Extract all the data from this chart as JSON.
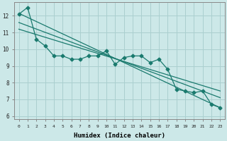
{
  "title": "",
  "xlabel": "Humidex (Indice chaleur)",
  "ylabel": "",
  "bg_color": "#cce8e8",
  "grid_color": "#aacfcf",
  "line_color": "#1a7a6e",
  "xlim": [
    -0.5,
    23.5
  ],
  "ylim": [
    5.8,
    12.8
  ],
  "xticks": [
    0,
    1,
    2,
    3,
    4,
    5,
    6,
    7,
    8,
    9,
    10,
    11,
    12,
    13,
    14,
    15,
    16,
    17,
    18,
    19,
    20,
    21,
    22,
    23
  ],
  "yticks": [
    6,
    7,
    8,
    9,
    10,
    11,
    12
  ],
  "data_x": [
    0,
    1,
    2,
    3,
    4,
    5,
    6,
    7,
    8,
    9,
    10,
    11,
    12,
    13,
    14,
    15,
    16,
    17,
    18,
    19,
    20,
    21,
    22,
    23
  ],
  "data_y": [
    12.1,
    12.5,
    10.6,
    10.2,
    9.6,
    9.6,
    9.4,
    9.4,
    9.6,
    9.6,
    9.9,
    9.1,
    9.5,
    9.6,
    9.6,
    9.2,
    9.4,
    8.8,
    7.6,
    7.5,
    7.4,
    7.5,
    6.7,
    6.5
  ],
  "trend1_x": [
    0,
    23
  ],
  "trend1_y": [
    12.15,
    6.5
  ],
  "trend2_x": [
    0,
    23
  ],
  "trend2_y": [
    11.6,
    7.1
  ],
  "trend3_x": [
    0,
    23
  ],
  "trend3_y": [
    11.2,
    7.5
  ]
}
